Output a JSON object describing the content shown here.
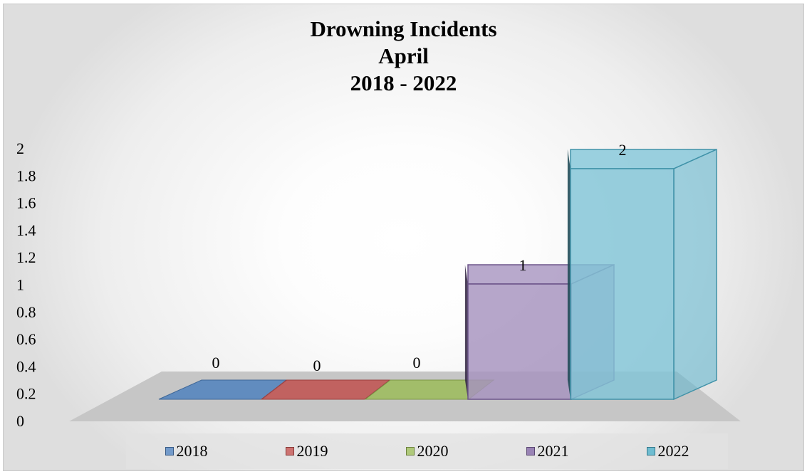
{
  "chart_data": {
    "type": "bar",
    "title_lines": [
      "Drowning Incidents",
      "April",
      "2018 - 2022"
    ],
    "categories": [
      "2018",
      "2019",
      "2020",
      "2021",
      "2022"
    ],
    "values": [
      0,
      0,
      0,
      1,
      2
    ],
    "data_labels": [
      "0",
      "0",
      "0",
      "1",
      "2"
    ],
    "y_ticks": [
      "0",
      "0.2",
      "0.4",
      "0.6",
      "0.8",
      "1",
      "1.2",
      "1.4",
      "1.6",
      "1.8",
      "2"
    ],
    "ylim": [
      0,
      2
    ],
    "grid": false,
    "legend": "bottom",
    "style": "3d-column",
    "colors": [
      "#4f81bd",
      "#c0504d",
      "#9bbb59",
      "#8064a2",
      "#4bacc6"
    ]
  }
}
